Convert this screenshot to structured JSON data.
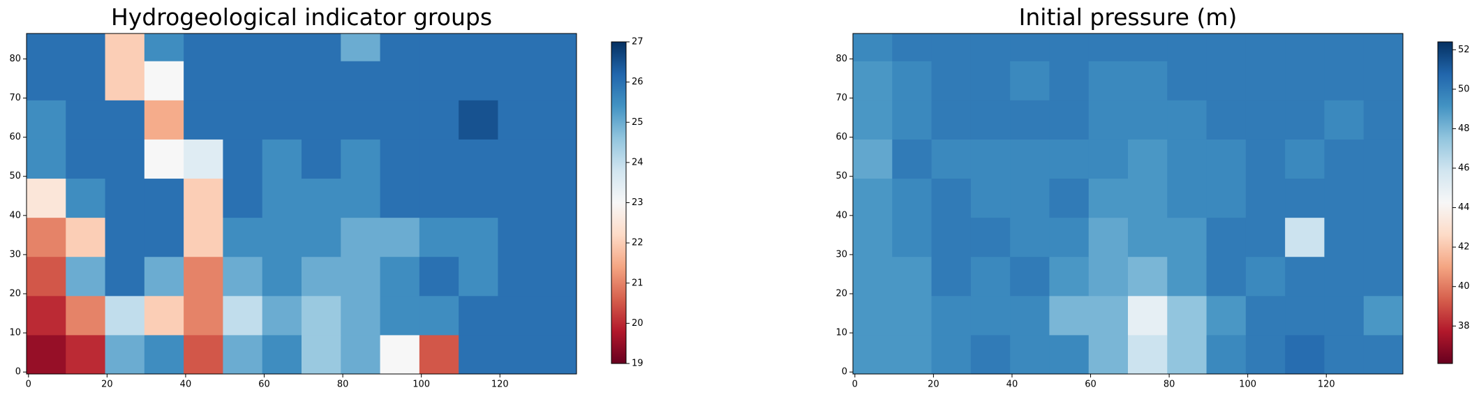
{
  "chart_data": [
    {
      "type": "heatmap",
      "title": "Hydrogeological indicator groups",
      "colormap": [
        "#67001f",
        "#b2182b",
        "#d6604d",
        "#f4a582",
        "#fddbc7",
        "#f7f7f7",
        "#d1e5f0",
        "#92c5de",
        "#4393c3",
        "#2166ac",
        "#053061"
      ],
      "x_bins": [
        -0.5,
        9.5,
        19.5,
        29.5,
        39.5,
        49.5,
        59.5,
        69.5,
        79.5,
        89.5,
        99.5,
        109.5,
        119.5,
        129.5,
        139.5
      ],
      "y_bins": [
        -0.5,
        9.5,
        19.5,
        29.5,
        39.5,
        49.5,
        59.5,
        69.5,
        79.5,
        86.5
      ],
      "z": [
        [
          19.5,
          20,
          25,
          25.5,
          20.5,
          25,
          25.5,
          24.5,
          25,
          23,
          20.5,
          26,
          26,
          26
        ],
        [
          20,
          21,
          24,
          22,
          21,
          24,
          25,
          24.5,
          25,
          25.5,
          25.5,
          26,
          26,
          26
        ],
        [
          20.5,
          25,
          26,
          25,
          21,
          25,
          25.5,
          25,
          25,
          25.5,
          26,
          25.5,
          26,
          26
        ],
        [
          21,
          22,
          26,
          26,
          22,
          25.5,
          25.5,
          25.5,
          25,
          25,
          25.5,
          25.5,
          26,
          26
        ],
        [
          22.5,
          25.5,
          26,
          26,
          22,
          26,
          25.5,
          25.5,
          25.5,
          26,
          26,
          26,
          26,
          26
        ],
        [
          25.5,
          26,
          26,
          23,
          23.5,
          26,
          25.5,
          26,
          25.5,
          26,
          26,
          26,
          26,
          26
        ],
        [
          25.5,
          26,
          26,
          21.5,
          26,
          26,
          26,
          26,
          26,
          26,
          26,
          26.5,
          26,
          26
        ],
        [
          26,
          26,
          22,
          23,
          26,
          26,
          26,
          26,
          26,
          26,
          26,
          26,
          26,
          26
        ],
        [
          26,
          26,
          22,
          25.5,
          26,
          26,
          26,
          26,
          25,
          26,
          26,
          26,
          26,
          26
        ]
      ],
      "xlim": [
        -0.5,
        139.5
      ],
      "ylim": [
        -0.5,
        86.5
      ],
      "xticks": [
        0,
        20,
        40,
        60,
        80,
        100,
        120
      ],
      "yticks": [
        0,
        10,
        20,
        30,
        40,
        50,
        60,
        70,
        80
      ],
      "clim": [
        19,
        27
      ],
      "cticks": [
        19,
        20,
        21,
        22,
        23,
        24,
        25,
        26,
        27
      ]
    },
    {
      "type": "heatmap",
      "title": "Initial pressure (m)",
      "colormap": [
        "#67001f",
        "#b2182b",
        "#d6604d",
        "#f4a582",
        "#fddbc7",
        "#f7f7f7",
        "#d1e5f0",
        "#92c5de",
        "#4393c3",
        "#2166ac",
        "#053061"
      ],
      "x_bins": [
        -0.5,
        9.5,
        19.5,
        29.5,
        39.5,
        49.5,
        59.5,
        69.5,
        79.5,
        89.5,
        99.5,
        109.5,
        119.5,
        129.5,
        139.5
      ],
      "y_bins": [
        -0.5,
        9.5,
        19.5,
        29.5,
        39.5,
        49.5,
        59.5,
        69.5,
        79.5,
        86.5
      ],
      "z": [
        [
          49,
          49,
          49.5,
          50,
          49.5,
          49.5,
          48,
          46,
          47.5,
          49.5,
          50,
          50.5,
          50,
          50
        ],
        [
          49,
          49,
          49.5,
          49.5,
          49.5,
          48,
          48,
          45,
          47.5,
          49,
          50,
          50,
          50,
          49
        ],
        [
          49,
          49,
          50,
          49.5,
          50,
          49,
          48.5,
          48,
          49,
          50,
          49.5,
          50,
          50,
          50
        ],
        [
          49,
          49.5,
          50,
          50,
          49.5,
          49.5,
          48.5,
          49,
          49,
          50,
          50,
          46,
          50,
          50
        ],
        [
          49,
          49.5,
          50,
          49.5,
          49.5,
          50,
          49,
          49,
          49.5,
          49.5,
          50,
          50,
          50,
          50
        ],
        [
          48.5,
          50,
          49.5,
          49.5,
          49.5,
          49.5,
          49.5,
          49,
          49.5,
          49.5,
          50,
          49.5,
          50,
          50
        ],
        [
          49,
          49.5,
          50,
          50,
          50,
          50,
          49.5,
          49.5,
          49.5,
          50,
          50,
          50,
          49.5,
          50
        ],
        [
          49,
          49.5,
          50,
          50,
          49.5,
          50,
          49.5,
          49.5,
          50,
          50,
          50,
          50,
          50,
          50
        ],
        [
          49.5,
          50,
          50,
          50,
          50,
          50,
          50,
          50,
          50,
          50,
          50,
          50,
          50,
          50
        ]
      ],
      "xlim": [
        -0.5,
        139.5
      ],
      "ylim": [
        -0.5,
        86.5
      ],
      "xticks": [
        0,
        20,
        40,
        60,
        80,
        100,
        120
      ],
      "yticks": [
        0,
        10,
        20,
        30,
        40,
        50,
        60,
        70,
        80
      ],
      "clim": [
        36.1,
        52.4
      ],
      "cticks": [
        38,
        40,
        42,
        44,
        46,
        48,
        50,
        52
      ]
    }
  ]
}
